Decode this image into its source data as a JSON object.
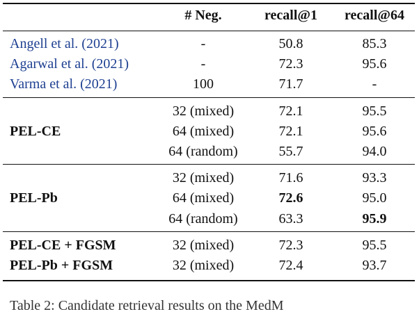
{
  "table": {
    "header": [
      "# Neg.",
      "recall@1",
      "recall@64"
    ],
    "groups": [
      {
        "rows": [
          {
            "label": "Angell et al. (2021)",
            "cells": [
              "-",
              "50.8",
              "85.3"
            ]
          },
          {
            "label": "Agarwal et al. (2021)",
            "cells": [
              "-",
              "72.3",
              "95.6"
            ]
          },
          {
            "label": "Varma et al. (2021)",
            "cells": [
              "100",
              "71.7",
              "-"
            ]
          }
        ]
      },
      {
        "label": "PEL-CE",
        "rows": [
          {
            "cells": [
              "32 (mixed)",
              "72.1",
              "95.5"
            ]
          },
          {
            "cells": [
              "64 (mixed)",
              "72.1",
              "95.6"
            ]
          },
          {
            "cells": [
              "64 (random)",
              "55.7",
              "94.0"
            ]
          }
        ]
      },
      {
        "label": "PEL-Pb",
        "rows": [
          {
            "cells": [
              "32 (mixed)",
              "71.6",
              "93.3"
            ]
          },
          {
            "cells": [
              "64 (mixed)",
              {
                "text": "72.6",
                "bold": true
              },
              "95.0"
            ]
          },
          {
            "cells": [
              "64 (random)",
              "63.3",
              {
                "text": "95.9",
                "bold": true
              }
            ]
          }
        ]
      },
      {
        "rows": [
          {
            "label": "PEL-CE + FGSM",
            "cells": [
              "32 (mixed)",
              "72.3",
              "95.5"
            ]
          },
          {
            "label": "PEL-Pb + FGSM",
            "cells": [
              "32 (mixed)",
              "72.4",
              "93.7"
            ]
          }
        ]
      }
    ]
  },
  "caption": "Table 2: Candidate retrieval results on the MedM"
}
